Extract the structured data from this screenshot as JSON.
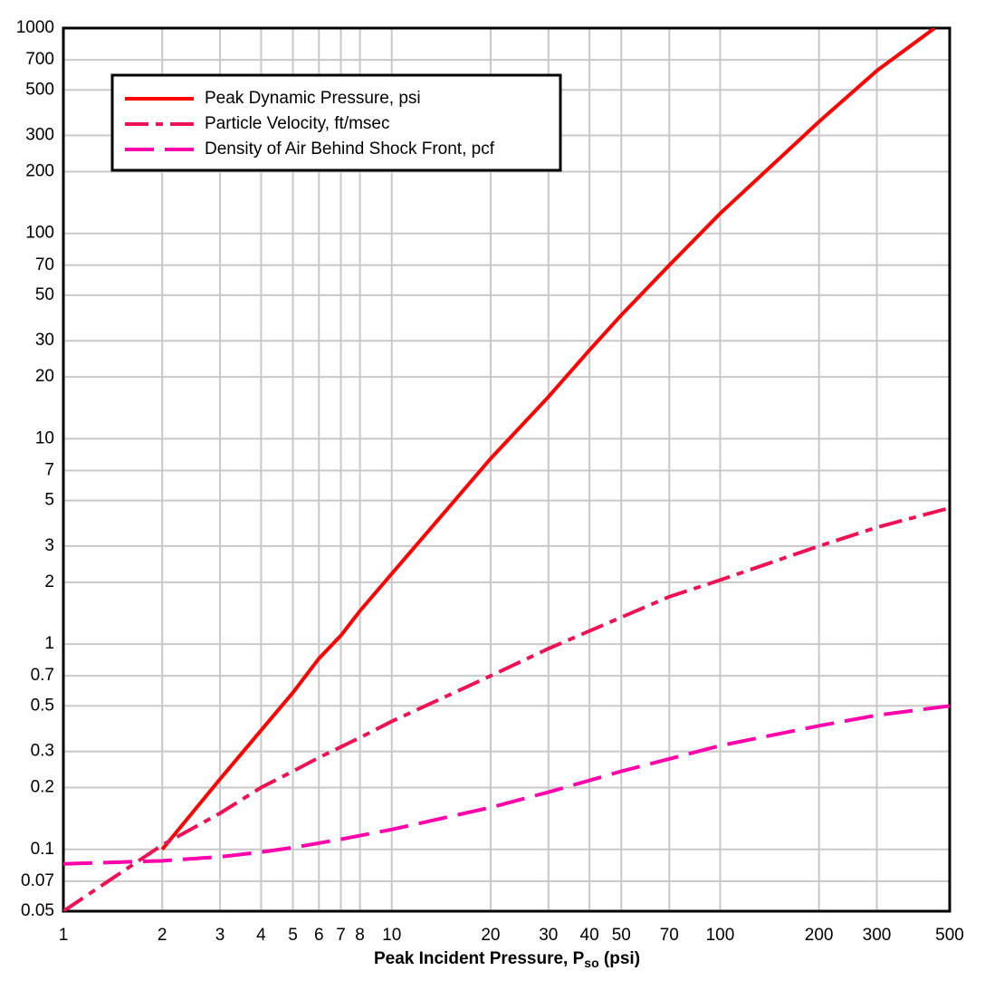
{
  "chart_data": {
    "type": "line",
    "xlabel": {
      "text": "Peak Incident Pressure, P",
      "sub": "so",
      "after": " (psi)"
    },
    "log_x": true,
    "log_y": true,
    "grid": true,
    "legend": "upper left",
    "xlim": [
      1,
      500
    ],
    "ylim": [
      0.05,
      1000
    ],
    "xticks": [
      1,
      2,
      3,
      4,
      5,
      6,
      7,
      8,
      10,
      20,
      30,
      40,
      50,
      70,
      100,
      200,
      300,
      500
    ],
    "yticks": [
      0.05,
      0.07,
      0.1,
      0.2,
      0.3,
      0.5,
      0.7,
      1,
      2,
      3,
      5,
      7,
      10,
      20,
      30,
      50,
      70,
      100,
      200,
      300,
      500,
      700,
      1000
    ],
    "series": [
      {
        "name": "Peak Dynamic Pressure, psi",
        "color": "#ff0000",
        "dash": "solid",
        "x": [
          2,
          3,
          4,
          5,
          6,
          7,
          8,
          10,
          20,
          30,
          40,
          50,
          70,
          100,
          200,
          300,
          450
        ],
        "values": [
          0.1,
          0.22,
          0.38,
          0.58,
          0.85,
          1.1,
          1.45,
          2.2,
          8,
          16,
          27,
          40,
          70,
          125,
          350,
          620,
          1000
        ]
      },
      {
        "name": "Particle Velocity, ft/msec",
        "color": "#ee1155",
        "dash": "dashdot",
        "x": [
          1,
          2,
          3,
          4,
          5,
          6,
          8,
          10,
          20,
          30,
          50,
          70,
          100,
          200,
          300,
          500
        ],
        "values": [
          0.05,
          0.105,
          0.15,
          0.2,
          0.24,
          0.28,
          0.35,
          0.42,
          0.7,
          0.95,
          1.35,
          1.7,
          2.05,
          3.0,
          3.7,
          4.6
        ]
      },
      {
        "name": "Density of Air Behind Shock Front, pcf",
        "color": "#ff00aa",
        "dash": "longdash",
        "x": [
          1,
          2,
          3,
          4,
          5,
          7,
          10,
          20,
          30,
          50,
          100,
          200,
          300,
          500
        ],
        "values": [
          0.085,
          0.088,
          0.092,
          0.097,
          0.102,
          0.112,
          0.125,
          0.16,
          0.19,
          0.24,
          0.32,
          0.4,
          0.45,
          0.5
        ]
      }
    ]
  }
}
